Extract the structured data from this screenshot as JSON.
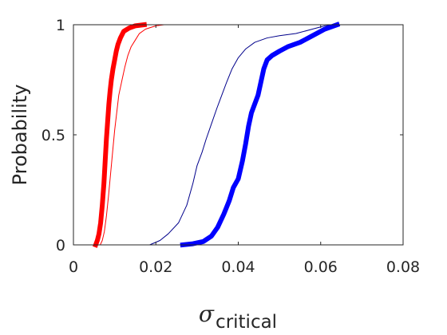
{
  "chart_data": {
    "type": "line",
    "title": "",
    "xlabel": {
      "symbol": "σ",
      "subscript": "critical"
    },
    "ylabel": "Probability",
    "xlim": [
      0,
      0.08
    ],
    "ylim": [
      0,
      1
    ],
    "x_ticks": [
      "0",
      "0.02",
      "0.04",
      "0.06",
      "0.08"
    ],
    "y_ticks": [
      "0",
      "0.5",
      "1"
    ],
    "grid": false,
    "legend": "none",
    "series": [
      {
        "color": "#ff0000",
        "style": "thick",
        "points": [
          [
            0.0054,
            0
          ],
          [
            0.0058,
            0.02
          ],
          [
            0.0062,
            0.05
          ],
          [
            0.0066,
            0.1
          ],
          [
            0.007,
            0.18
          ],
          [
            0.0074,
            0.28
          ],
          [
            0.0077,
            0.38
          ],
          [
            0.008,
            0.48
          ],
          [
            0.0083,
            0.56
          ],
          [
            0.0086,
            0.64
          ],
          [
            0.0089,
            0.7
          ],
          [
            0.0092,
            0.75
          ],
          [
            0.0096,
            0.8
          ],
          [
            0.01,
            0.84
          ],
          [
            0.0104,
            0.88
          ],
          [
            0.0108,
            0.91
          ],
          [
            0.0114,
            0.94
          ],
          [
            0.0122,
            0.97
          ],
          [
            0.0135,
            0.985
          ],
          [
            0.015,
            0.995
          ],
          [
            0.0172,
            1.0
          ]
        ]
      },
      {
        "color": "#ff0000",
        "style": "thin",
        "points": [
          [
            0.0065,
            0
          ],
          [
            0.007,
            0.02
          ],
          [
            0.0075,
            0.06
          ],
          [
            0.008,
            0.13
          ],
          [
            0.0085,
            0.22
          ],
          [
            0.009,
            0.32
          ],
          [
            0.0095,
            0.42
          ],
          [
            0.01,
            0.52
          ],
          [
            0.0105,
            0.6
          ],
          [
            0.011,
            0.68
          ],
          [
            0.0118,
            0.75
          ],
          [
            0.0125,
            0.81
          ],
          [
            0.0132,
            0.86
          ],
          [
            0.014,
            0.9
          ],
          [
            0.015,
            0.93
          ],
          [
            0.016,
            0.96
          ],
          [
            0.0175,
            0.98
          ],
          [
            0.02,
            0.995
          ],
          [
            0.022,
            1.0
          ]
        ]
      },
      {
        "color": "#00008b",
        "style": "thin",
        "points": [
          [
            0.0185,
            0
          ],
          [
            0.021,
            0.02
          ],
          [
            0.023,
            0.05
          ],
          [
            0.0255,
            0.1
          ],
          [
            0.0275,
            0.18
          ],
          [
            0.029,
            0.28
          ],
          [
            0.03,
            0.36
          ],
          [
            0.0312,
            0.42
          ],
          [
            0.0322,
            0.48
          ],
          [
            0.0335,
            0.55
          ],
          [
            0.0348,
            0.62
          ],
          [
            0.036,
            0.68
          ],
          [
            0.0372,
            0.74
          ],
          [
            0.0385,
            0.8
          ],
          [
            0.04,
            0.85
          ],
          [
            0.0418,
            0.89
          ],
          [
            0.044,
            0.92
          ],
          [
            0.047,
            0.94
          ],
          [
            0.05,
            0.95
          ],
          [
            0.054,
            0.96
          ],
          [
            0.058,
            0.98
          ],
          [
            0.061,
            0.995
          ],
          [
            0.064,
            1.0
          ]
        ]
      },
      {
        "color": "#0000ff",
        "style": "thick",
        "points": [
          [
            0.0265,
            0
          ],
          [
            0.029,
            0.005
          ],
          [
            0.0315,
            0.015
          ],
          [
            0.0335,
            0.04
          ],
          [
            0.035,
            0.08
          ],
          [
            0.0365,
            0.14
          ],
          [
            0.0378,
            0.2
          ],
          [
            0.0388,
            0.26
          ],
          [
            0.04,
            0.3
          ],
          [
            0.041,
            0.38
          ],
          [
            0.0418,
            0.46
          ],
          [
            0.0425,
            0.54
          ],
          [
            0.0432,
            0.6
          ],
          [
            0.044,
            0.64
          ],
          [
            0.0448,
            0.68
          ],
          [
            0.0455,
            0.74
          ],
          [
            0.0462,
            0.8
          ],
          [
            0.047,
            0.84
          ],
          [
            0.0482,
            0.86
          ],
          [
            0.05,
            0.88
          ],
          [
            0.052,
            0.9
          ],
          [
            0.055,
            0.92
          ],
          [
            0.058,
            0.95
          ],
          [
            0.061,
            0.98
          ],
          [
            0.064,
            1.0
          ]
        ]
      }
    ]
  }
}
